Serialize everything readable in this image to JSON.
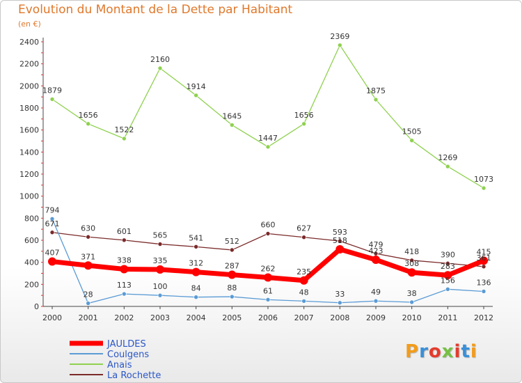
{
  "title": "Evolution du Montant de la Dette par Habitant",
  "subtitle": "(en €)",
  "logo": "Proxiti",
  "chart_data": {
    "type": "line",
    "title": "Evolution du Montant de la Dette par Habitant",
    "subtitle": "(en €)",
    "xlabel": "",
    "ylabel": "",
    "categories": [
      "2000",
      "2001",
      "2002",
      "2003",
      "2004",
      "2005",
      "2006",
      "2007",
      "2008",
      "2009",
      "2010",
      "2011",
      "2012"
    ],
    "ylim": [
      0,
      2400
    ],
    "yticks": [
      0,
      200,
      400,
      600,
      800,
      1000,
      1200,
      1400,
      1600,
      1800,
      2000,
      2200,
      2400
    ],
    "grid": false,
    "legend_position": "bottom-left",
    "series": [
      {
        "name": "JAULDES",
        "color": "#ff0000",
        "values": [
          407,
          371,
          338,
          335,
          312,
          287,
          262,
          235,
          518,
          423,
          308,
          283,
          415
        ]
      },
      {
        "name": "Coulgens",
        "color": "#5a9bd5",
        "values": [
          794,
          28,
          113,
          100,
          84,
          88,
          61,
          48,
          33,
          49,
          38,
          156,
          136
        ]
      },
      {
        "name": "Anais",
        "color": "#8fd14f",
        "values": [
          1879,
          1656,
          1522,
          2160,
          1914,
          1645,
          1447,
          1656,
          2369,
          1875,
          1505,
          1269,
          1073
        ]
      },
      {
        "name": "La Rochette",
        "color": "#7b2a2a",
        "values": [
          671,
          630,
          601,
          565,
          541,
          512,
          660,
          627,
          593,
          479,
          418,
          390,
          361
        ]
      }
    ]
  }
}
